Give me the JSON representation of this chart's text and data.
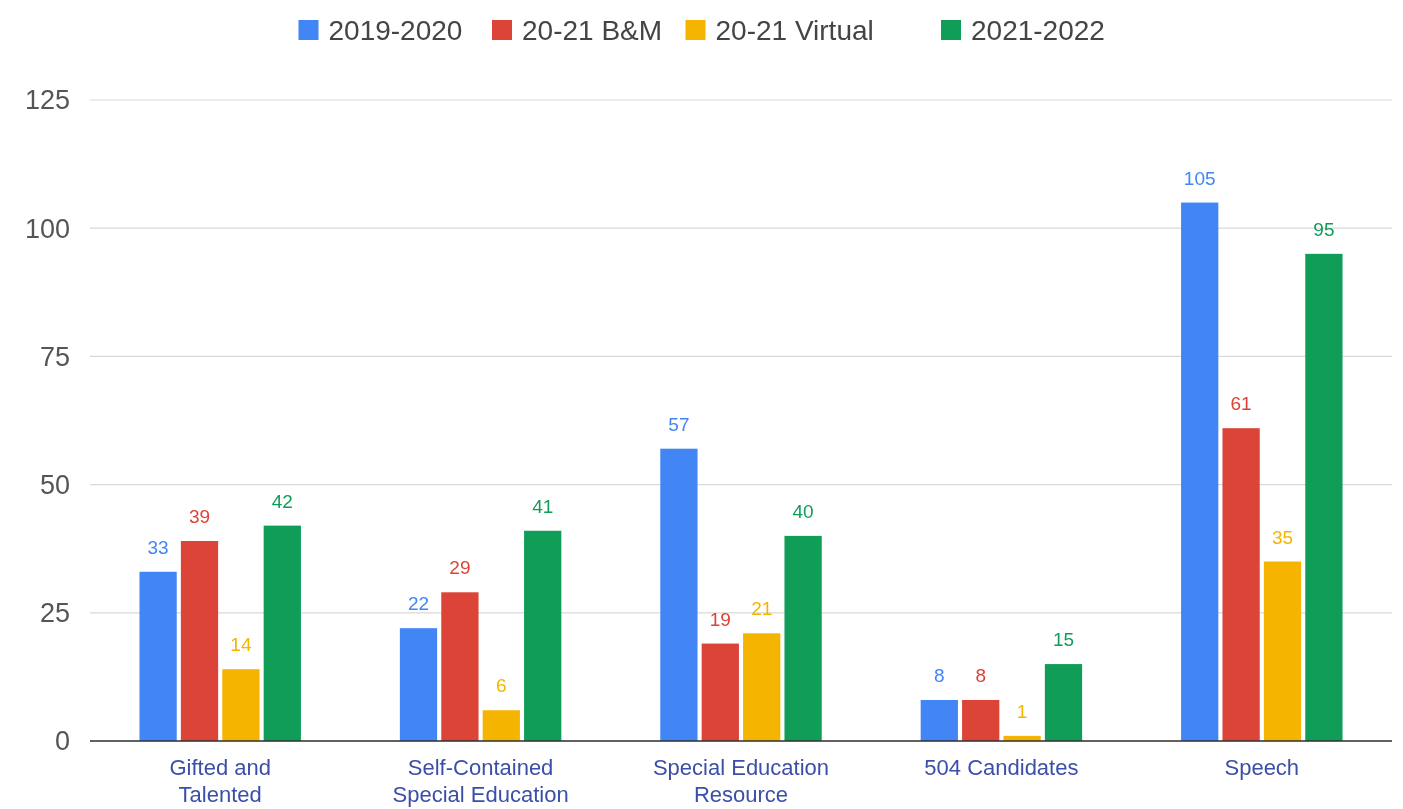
{
  "chart_data": {
    "type": "bar",
    "categories": [
      "Gifted and Talented",
      "Self-Contained Special Education",
      "Special Education Resource",
      "504 Candidates",
      "Speech"
    ],
    "series": [
      {
        "name": "2019-2020",
        "color": "#4285f4",
        "values": [
          33,
          22,
          57,
          8,
          105
        ]
      },
      {
        "name": "20-21 B&M",
        "color": "#db4437",
        "values": [
          39,
          29,
          19,
          8,
          61
        ]
      },
      {
        "name": "20-21 Virtual",
        "color": "#f4b400",
        "values": [
          14,
          6,
          21,
          1,
          35
        ]
      },
      {
        "name": "2021-2022",
        "color": "#0f9d58",
        "values": [
          42,
          41,
          40,
          15,
          95
        ]
      }
    ],
    "ylim": [
      0,
      125
    ],
    "yticks": [
      0,
      25,
      50,
      75,
      100,
      125
    ],
    "grid": "y",
    "legend": "top",
    "data_labels": true
  }
}
